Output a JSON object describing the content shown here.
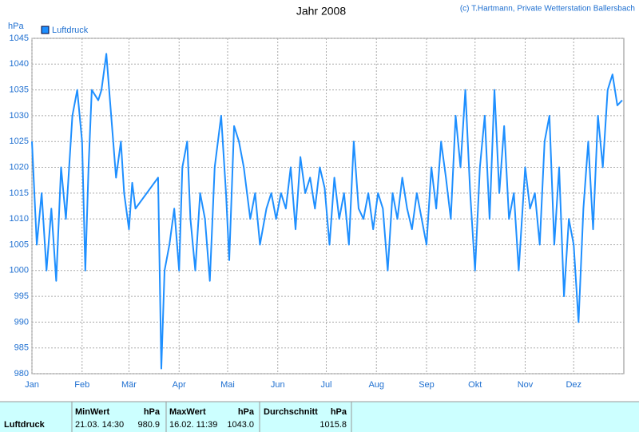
{
  "chart_data": {
    "type": "line",
    "title": "Jahr 2008",
    "copyright": "(c) T.Hartmann, Private Wetterstation Ballersbach",
    "y_label": "hPa",
    "legend_position": "top-left",
    "grid": true,
    "xlim": [
      0,
      366
    ],
    "xticks": [
      {
        "value": 0,
        "label": "Jan"
      },
      {
        "value": 31,
        "label": "Feb"
      },
      {
        "value": 60,
        "label": "Mär"
      },
      {
        "value": 91,
        "label": "Apr"
      },
      {
        "value": 121,
        "label": "Mai"
      },
      {
        "value": 152,
        "label": "Jun"
      },
      {
        "value": 182,
        "label": "Jul"
      },
      {
        "value": 213,
        "label": "Aug"
      },
      {
        "value": 244,
        "label": "Sep"
      },
      {
        "value": 274,
        "label": "Okt"
      },
      {
        "value": 305,
        "label": "Nov"
      },
      {
        "value": 335,
        "label": "Dez"
      }
    ],
    "ylim": [
      980,
      1045
    ],
    "yticks": [
      980,
      985,
      990,
      995,
      1000,
      1005,
      1010,
      1015,
      1020,
      1025,
      1030,
      1035,
      1040,
      1045
    ],
    "x": [
      0,
      3,
      6,
      9,
      12,
      15,
      18,
      21,
      25,
      28,
      31,
      33,
      35,
      37,
      41,
      43,
      46,
      49,
      52,
      55,
      57,
      60,
      62,
      64,
      78,
      80,
      82,
      85,
      88,
      91,
      93,
      96,
      98,
      101,
      104,
      107,
      110,
      113,
      117,
      120,
      122,
      125,
      128,
      131,
      135,
      138,
      141,
      145,
      148,
      151,
      154,
      157,
      160,
      163,
      166,
      169,
      172,
      175,
      178,
      181,
      184,
      187,
      190,
      193,
      196,
      199,
      202,
      205,
      208,
      211,
      214,
      217,
      220,
      223,
      226,
      229,
      232,
      235,
      238,
      241,
      244,
      247,
      250,
      253,
      256,
      259,
      262,
      265,
      268,
      271,
      274,
      277,
      280,
      283,
      286,
      289,
      292,
      295,
      298,
      301,
      305,
      308,
      311,
      314,
      317,
      320,
      323,
      326,
      329,
      332,
      335,
      338,
      341,
      344,
      347,
      350,
      353,
      356,
      359,
      362,
      365
    ],
    "series": [
      {
        "name": "Luftdruck",
        "color": "#1e8fff",
        "values": [
          1025,
          1005,
          1015,
          1000,
          1012,
          998,
          1020,
          1010,
          1030,
          1035,
          1025,
          1000,
          1020,
          1035,
          1033,
          1035,
          1042,
          1030,
          1018,
          1025,
          1015,
          1008,
          1017,
          1012,
          1018,
          981,
          1000,
          1005,
          1012,
          1000,
          1020,
          1025,
          1010,
          1000,
          1015,
          1010,
          998,
          1020,
          1030,
          1015,
          1002,
          1028,
          1025,
          1020,
          1010,
          1015,
          1005,
          1012,
          1015,
          1010,
          1015,
          1012,
          1020,
          1008,
          1022,
          1015,
          1018,
          1012,
          1020,
          1016,
          1005,
          1018,
          1010,
          1015,
          1005,
          1025,
          1012,
          1010,
          1015,
          1008,
          1015,
          1012,
          1000,
          1015,
          1010,
          1018,
          1012,
          1008,
          1015,
          1010,
          1005,
          1020,
          1012,
          1025,
          1018,
          1010,
          1030,
          1020,
          1035,
          1015,
          1000,
          1020,
          1030,
          1010,
          1035,
          1015,
          1028,
          1010,
          1015,
          1000,
          1020,
          1012,
          1015,
          1005,
          1025,
          1030,
          1005,
          1020,
          995,
          1010,
          1005,
          990,
          1012,
          1025,
          1008,
          1030,
          1020,
          1035,
          1038,
          1032,
          1033
        ]
      }
    ]
  },
  "table": {
    "header": [
      "MinWert",
      "hPa",
      "MaxWert",
      "hPa",
      "Durchschnitt",
      "hPa"
    ],
    "rows": [
      [
        "Luftdruck",
        "21.03. 14:30",
        "980.9",
        "16.02. 11:39",
        "1043.0",
        "1015.8"
      ]
    ]
  }
}
